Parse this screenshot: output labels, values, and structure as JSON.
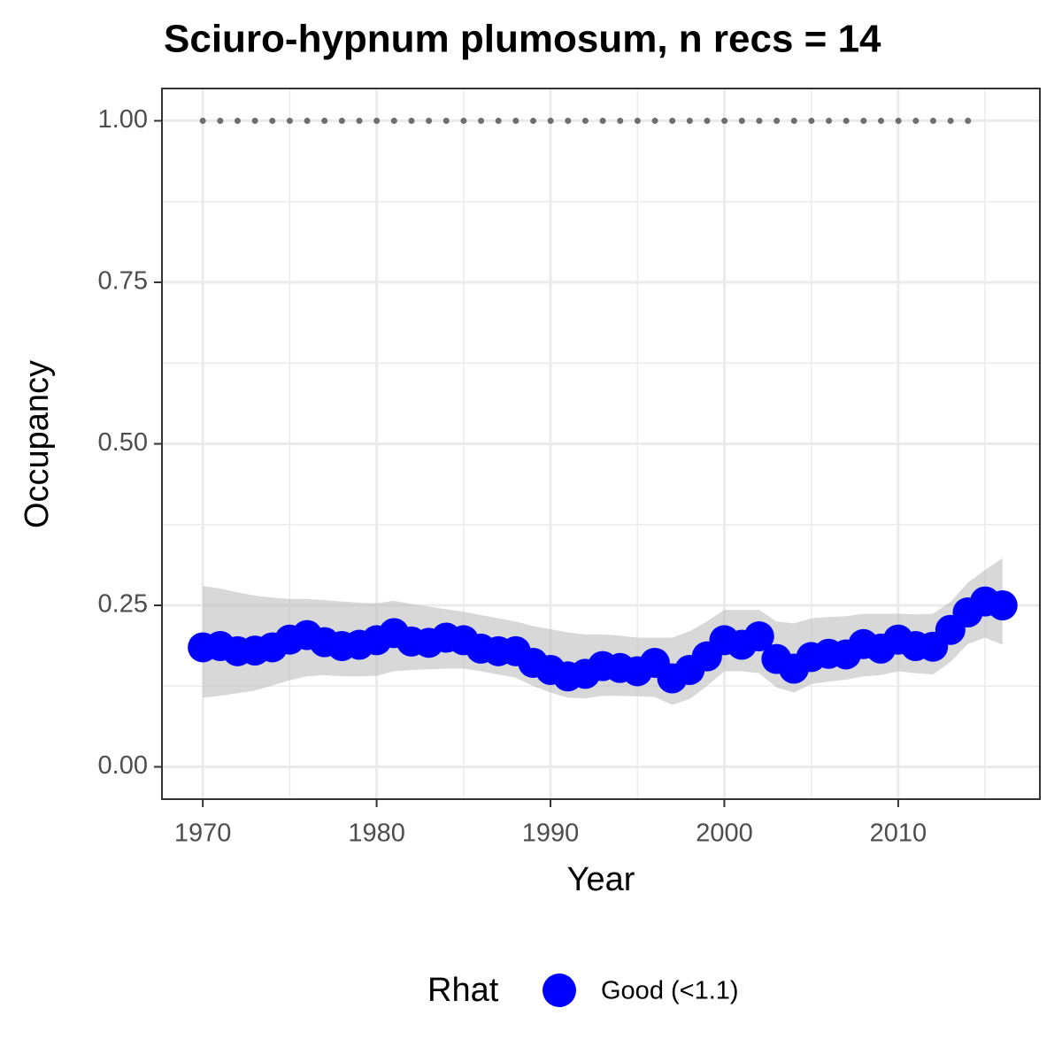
{
  "chart_data": {
    "type": "line",
    "title": "Sciuro-hypnum plumosum, n recs = 14",
    "x_label": "Year",
    "y_label": "Occupancy",
    "x": [
      1970,
      1971,
      1972,
      1973,
      1974,
      1975,
      1976,
      1977,
      1978,
      1979,
      1980,
      1981,
      1982,
      1983,
      1984,
      1985,
      1986,
      1987,
      1988,
      1989,
      1990,
      1991,
      1992,
      1993,
      1994,
      1995,
      1996,
      1997,
      1998,
      1999,
      2000,
      2001,
      2002,
      2003,
      2004,
      2005,
      2006,
      2007,
      2008,
      2009,
      2010,
      2011,
      2012,
      2013,
      2014,
      2015,
      2016
    ],
    "series": [
      {
        "name": "Good (<1.1)",
        "color": "#0000ff",
        "values": [
          0.185,
          0.187,
          0.179,
          0.18,
          0.185,
          0.197,
          0.204,
          0.193,
          0.187,
          0.189,
          0.196,
          0.207,
          0.194,
          0.192,
          0.2,
          0.196,
          0.183,
          0.179,
          0.179,
          0.161,
          0.15,
          0.14,
          0.144,
          0.156,
          0.153,
          0.148,
          0.161,
          0.137,
          0.15,
          0.171,
          0.196,
          0.189,
          0.202,
          0.167,
          0.152,
          0.17,
          0.175,
          0.174,
          0.19,
          0.183,
          0.197,
          0.187,
          0.186,
          0.212,
          0.239,
          0.256,
          0.25
        ],
        "upper": [
          0.28,
          0.276,
          0.27,
          0.265,
          0.262,
          0.26,
          0.26,
          0.258,
          0.256,
          0.254,
          0.253,
          0.257,
          0.252,
          0.248,
          0.244,
          0.24,
          0.235,
          0.23,
          0.225,
          0.218,
          0.213,
          0.208,
          0.205,
          0.205,
          0.203,
          0.2,
          0.2,
          0.2,
          0.21,
          0.225,
          0.243,
          0.243,
          0.243,
          0.225,
          0.222,
          0.23,
          0.232,
          0.233,
          0.237,
          0.237,
          0.237,
          0.236,
          0.237,
          0.255,
          0.285,
          0.305,
          0.323
        ],
        "lower": [
          0.107,
          0.11,
          0.114,
          0.118,
          0.126,
          0.134,
          0.14,
          0.142,
          0.14,
          0.14,
          0.141,
          0.148,
          0.15,
          0.151,
          0.152,
          0.152,
          0.148,
          0.143,
          0.138,
          0.125,
          0.115,
          0.107,
          0.106,
          0.11,
          0.11,
          0.109,
          0.108,
          0.096,
          0.105,
          0.125,
          0.148,
          0.148,
          0.145,
          0.123,
          0.115,
          0.128,
          0.132,
          0.135,
          0.14,
          0.142,
          0.148,
          0.145,
          0.143,
          0.162,
          0.19,
          0.2,
          0.189
        ]
      }
    ],
    "ribbon_color": "#bebebe",
    "reference_line": {
      "y": 1,
      "x": [
        1970,
        2015
      ],
      "color": "#6e6e6e"
    },
    "legend_title": "Rhat",
    "legend_position": "bottom",
    "xlim": [
      1967.65,
      2018.15
    ],
    "ylim": [
      -0.05,
      1.05
    ],
    "xticks": [
      1970,
      1980,
      1990,
      2000,
      2010
    ],
    "yticks": [
      {
        "value": 0,
        "label": "0.00"
      },
      {
        "value": 0.25,
        "label": "0.25"
      },
      {
        "value": 0.5,
        "label": "0.50"
      },
      {
        "value": 0.75,
        "label": "0.75"
      },
      {
        "value": 1,
        "label": "1.00"
      }
    ],
    "minor_xticks": [
      1975,
      1985,
      1995,
      2005,
      2015
    ],
    "minor_yticks": [
      0.125,
      0.375,
      0.625,
      0.875
    ],
    "grid": true
  }
}
